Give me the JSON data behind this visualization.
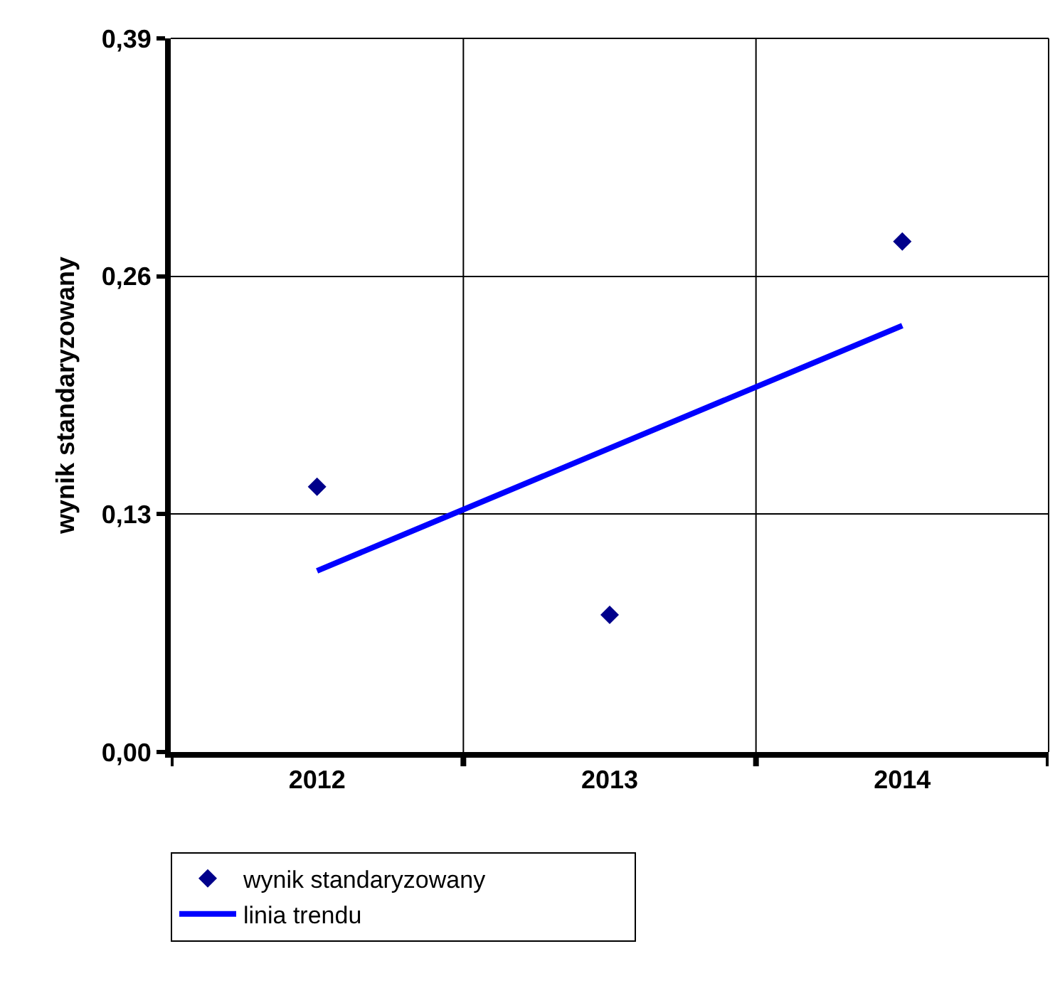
{
  "chart_data": {
    "type": "scatter",
    "ylabel": "wynik standaryzowany",
    "categories": [
      "2012",
      "2013",
      "2014"
    ],
    "series": [
      {
        "name": "wynik standaryzowany",
        "color": "#00008b",
        "marker": "diamond",
        "values": [
          0.145,
          0.075,
          0.279
        ]
      },
      {
        "name": "linia trendu",
        "type": "line",
        "color": "#0000ff",
        "marker": "none",
        "line_style": "solid",
        "values": [
          0.099,
          0.166,
          0.233
        ]
      }
    ],
    "ylim": [
      0,
      0.39
    ],
    "yticks": [
      {
        "value": 0,
        "label": "0,00"
      },
      {
        "value": 0.13,
        "label": "0,13"
      },
      {
        "value": 0.26,
        "label": "0,26"
      },
      {
        "value": 0.39,
        "label": "0,39"
      }
    ],
    "grid": true,
    "legend": "bottom"
  }
}
